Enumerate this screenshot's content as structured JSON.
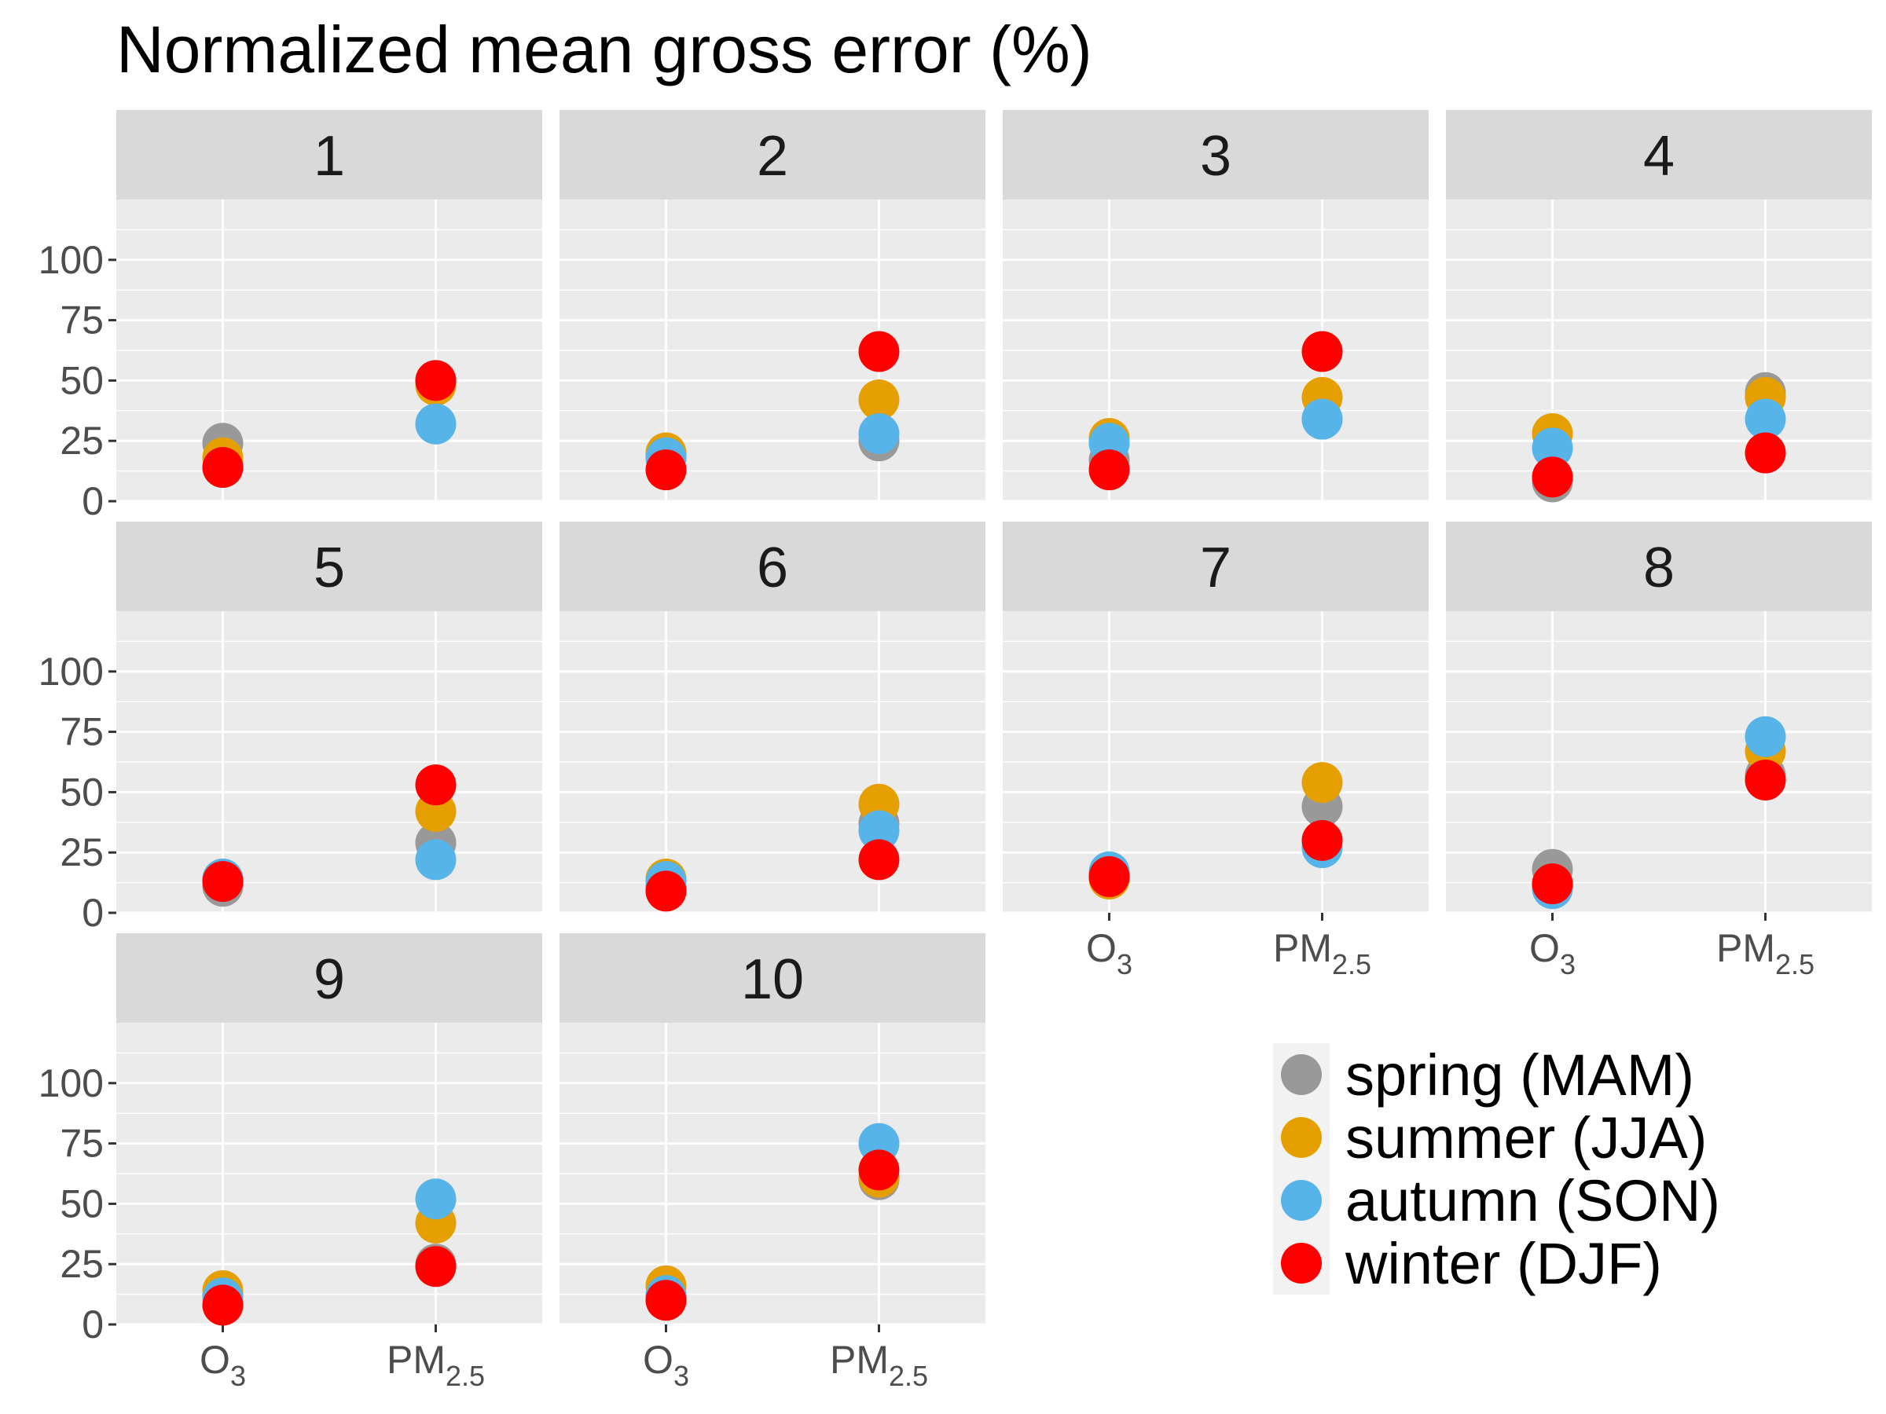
{
  "chart_data": {
    "type": "scatter",
    "title": "Normalized mean gross error (%)",
    "facet_layout": "wrap, 4 columns",
    "x_categories": [
      {
        "base": "O",
        "sub": "3"
      },
      {
        "base": "PM",
        "sub": "2.5"
      }
    ],
    "ylim": [
      0,
      125
    ],
    "yticks": [
      0,
      25,
      50,
      75,
      100
    ],
    "grid": true,
    "legend_position": "bottom-right",
    "series": [
      {
        "name": "spring (MAM)",
        "color": "#999999"
      },
      {
        "name": "summer (JJA)",
        "color": "#E69F00"
      },
      {
        "name": "autumn (SON)",
        "color": "#56B4E9"
      },
      {
        "name": "winter (DJF)",
        "color": "#FF0000"
      }
    ],
    "panels": [
      {
        "label": "1",
        "values": {
          "O3": [
            24,
            18,
            14,
            14
          ],
          "PM2.5": [
            50,
            48,
            32,
            50
          ]
        }
      },
      {
        "label": "2",
        "values": {
          "O3": [
            19,
            20,
            18,
            13
          ],
          "PM2.5": [
            25,
            42,
            28,
            62
          ]
        }
      },
      {
        "label": "3",
        "values": {
          "O3": [
            17,
            26,
            24,
            13
          ],
          "PM2.5": [
            34,
            43,
            34,
            62
          ]
        }
      },
      {
        "label": "4",
        "values": {
          "O3": [
            8,
            28,
            22,
            10
          ],
          "PM2.5": [
            45,
            43,
            34,
            20
          ]
        }
      },
      {
        "label": "5",
        "values": {
          "O3": [
            11,
            14,
            14,
            13
          ],
          "PM2.5": [
            29,
            42,
            22,
            53
          ]
        }
      },
      {
        "label": "6",
        "values": {
          "O3": [
            11,
            14,
            13,
            9
          ],
          "PM2.5": [
            37,
            45,
            34,
            22
          ]
        }
      },
      {
        "label": "7",
        "values": {
          "O3": [
            15,
            14,
            17,
            15
          ],
          "PM2.5": [
            44,
            54,
            27,
            30
          ]
        }
      },
      {
        "label": "8",
        "values": {
          "O3": [
            18,
            12,
            10,
            12
          ],
          "PM2.5": [
            57,
            67,
            73,
            55
          ]
        }
      },
      {
        "label": "9",
        "values": {
          "O3": [
            12,
            14,
            11,
            8
          ],
          "PM2.5": [
            25,
            42,
            52,
            24
          ]
        }
      },
      {
        "label": "10",
        "values": {
          "O3": [
            12,
            16,
            12,
            10
          ],
          "PM2.5": [
            60,
            61,
            75,
            64
          ]
        }
      }
    ]
  }
}
